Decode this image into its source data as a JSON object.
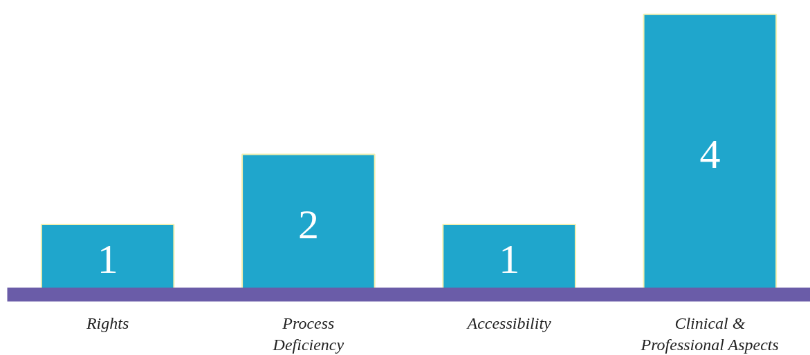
{
  "chart_data": {
    "type": "bar",
    "categories": [
      "Rights",
      "Process Deficiency",
      "Accessibility",
      "Clinical & Professional Aspects"
    ],
    "values": [
      1,
      2,
      1,
      4
    ],
    "color": "#1fa6cc",
    "data_labels": true,
    "grid": false
  }
}
